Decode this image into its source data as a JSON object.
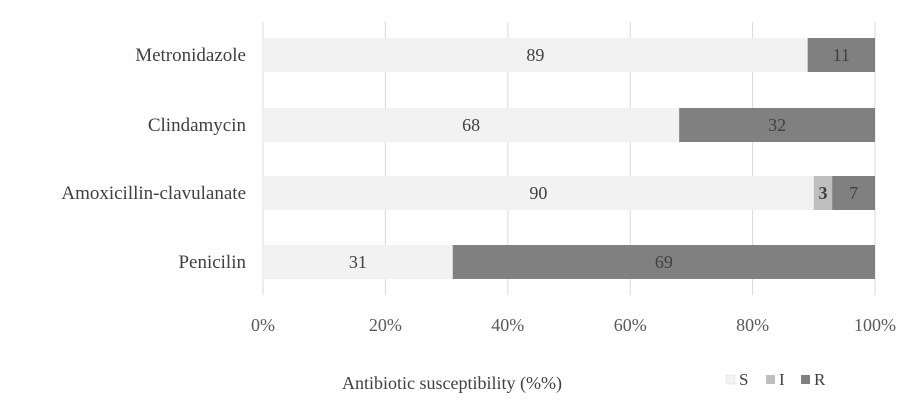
{
  "chart_data": {
    "type": "bar",
    "orientation": "horizontal",
    "stacked": "percent",
    "categories": [
      "Metronidazole",
      "Clindamycin",
      "Amoxicillin-clavulanate",
      "Penicilin"
    ],
    "series": [
      {
        "name": "S",
        "values": [
          89,
          68,
          90,
          31
        ],
        "color": "#f2f2f2",
        "labels": [
          "89",
          "68",
          "90",
          "31"
        ]
      },
      {
        "name": "I",
        "values": [
          0,
          0,
          3,
          0
        ],
        "color": "#bfbfbf",
        "labels": [
          "",
          "",
          "3",
          ""
        ]
      },
      {
        "name": "R",
        "values": [
          11,
          32,
          7,
          69
        ],
        "color": "#808080",
        "labels": [
          "11",
          "32",
          "7",
          "69"
        ]
      }
    ],
    "xlim": [
      0,
      100
    ],
    "xticks": [
      0,
      20,
      40,
      60,
      80,
      100
    ],
    "xtick_labels": [
      "0%",
      "20%",
      "40%",
      "60%",
      "80%",
      "100%"
    ],
    "xlabel": "Antibiotic susceptibility (%%)",
    "ylabel": "",
    "title": "",
    "grid": "vertical",
    "legend_position": "bottom-right"
  }
}
